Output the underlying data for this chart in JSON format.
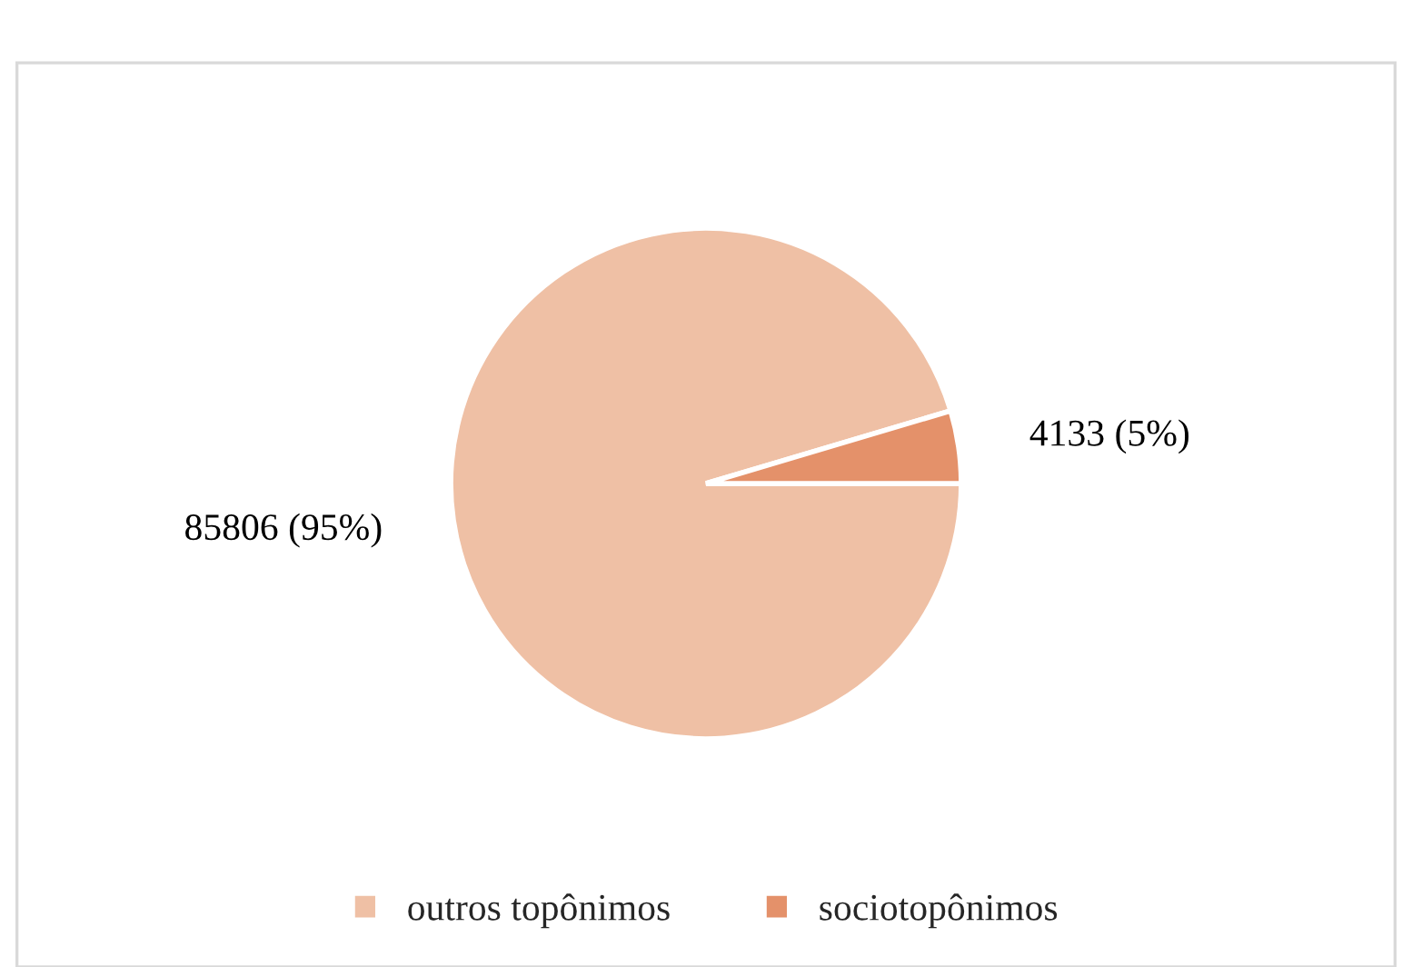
{
  "chart_data": {
    "type": "pie",
    "categories": [
      "outros topônimos",
      "sociotopônimos"
    ],
    "values": [
      85806,
      4133
    ],
    "value_labels": [
      "85806 (95%)",
      "4133 (5%)"
    ],
    "colors": [
      "#efc0a5",
      "#e4916a"
    ],
    "legend": "bottom"
  }
}
